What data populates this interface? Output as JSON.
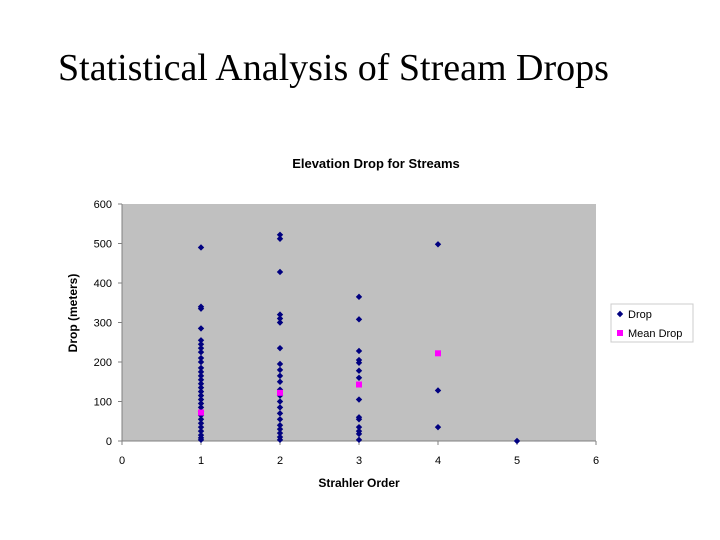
{
  "slide": {
    "title": "Statistical Analysis of Stream Drops"
  },
  "chart_data": {
    "type": "scatter",
    "title": "Elevation Drop for Streams",
    "xlabel": "Strahler Order",
    "ylabel": "Drop (meters)",
    "xlim": [
      0,
      6
    ],
    "ylim": [
      0,
      600
    ],
    "x_ticks": [
      0,
      1,
      2,
      3,
      4,
      5,
      6
    ],
    "y_ticks": [
      0,
      100,
      200,
      300,
      400,
      500,
      600
    ],
    "plot_background": "#c0c0c0",
    "grid": false,
    "legend_position": "right",
    "series": [
      {
        "name": "Drop",
        "marker": "diamond",
        "color": "#000080",
        "points": [
          [
            1,
            490
          ],
          [
            1,
            340
          ],
          [
            1,
            335
          ],
          [
            1,
            285
          ],
          [
            1,
            255
          ],
          [
            1,
            245
          ],
          [
            1,
            235
          ],
          [
            1,
            225
          ],
          [
            1,
            210
          ],
          [
            1,
            200
          ],
          [
            1,
            185
          ],
          [
            1,
            175
          ],
          [
            1,
            165
          ],
          [
            1,
            155
          ],
          [
            1,
            145
          ],
          [
            1,
            135
          ],
          [
            1,
            125
          ],
          [
            1,
            115
          ],
          [
            1,
            105
          ],
          [
            1,
            95
          ],
          [
            1,
            85
          ],
          [
            1,
            75
          ],
          [
            1,
            65
          ],
          [
            1,
            55
          ],
          [
            1,
            45
          ],
          [
            1,
            35
          ],
          [
            1,
            25
          ],
          [
            1,
            15
          ],
          [
            1,
            8
          ],
          [
            1,
            3
          ],
          [
            2,
            522
          ],
          [
            2,
            512
          ],
          [
            2,
            428
          ],
          [
            2,
            320
          ],
          [
            2,
            310
          ],
          [
            2,
            300
          ],
          [
            2,
            235
          ],
          [
            2,
            195
          ],
          [
            2,
            180
          ],
          [
            2,
            165
          ],
          [
            2,
            150
          ],
          [
            2,
            130
          ],
          [
            2,
            115
          ],
          [
            2,
            100
          ],
          [
            2,
            85
          ],
          [
            2,
            70
          ],
          [
            2,
            55
          ],
          [
            2,
            40
          ],
          [
            2,
            30
          ],
          [
            2,
            20
          ],
          [
            2,
            10
          ],
          [
            2,
            3
          ],
          [
            3,
            365
          ],
          [
            3,
            308
          ],
          [
            3,
            228
          ],
          [
            3,
            205
          ],
          [
            3,
            198
          ],
          [
            3,
            178
          ],
          [
            3,
            160
          ],
          [
            3,
            105
          ],
          [
            3,
            60
          ],
          [
            3,
            55
          ],
          [
            3,
            35
          ],
          [
            3,
            25
          ],
          [
            3,
            18
          ],
          [
            3,
            3
          ],
          [
            4,
            498
          ],
          [
            4,
            128
          ],
          [
            4,
            35
          ],
          [
            5,
            0
          ]
        ]
      },
      {
        "name": "Mean Drop",
        "marker": "square",
        "color": "#ff00ff",
        "points": [
          [
            1,
            72
          ],
          [
            2,
            122
          ],
          [
            3,
            143
          ],
          [
            4,
            222
          ]
        ]
      }
    ]
  }
}
